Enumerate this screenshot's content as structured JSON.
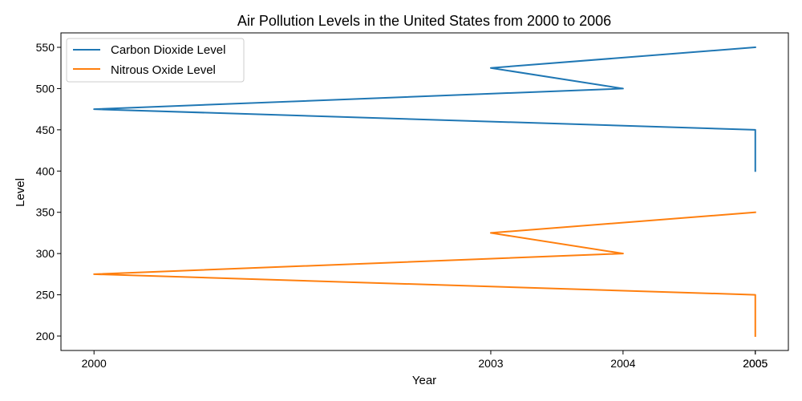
{
  "chart_data": {
    "type": "line",
    "title": "Air Pollution Levels in the United States from 2000 to 2006",
    "xlabel": "Year",
    "ylabel": "Level",
    "x_tick_labels": [
      "2000",
      "2003",
      "2004",
      "2005",
      "2005"
    ],
    "xlim": [
      1999.75,
      2005.25
    ],
    "ylim": [
      182.5,
      567.5
    ],
    "y_ticks": [
      200,
      250,
      300,
      350,
      400,
      450,
      500,
      550
    ],
    "legend_position": "upper-left",
    "series": [
      {
        "name": "Carbon Dioxide Level",
        "color": "#1f77b4",
        "x": [
          2005,
          2005,
          2000,
          2004,
          2003,
          2005
        ],
        "y": [
          400,
          450,
          475,
          500,
          525,
          550
        ]
      },
      {
        "name": "Nitrous Oxide Level",
        "color": "#ff7f0e",
        "x": [
          2005,
          2005,
          2000,
          2004,
          2003,
          2005
        ],
        "y": [
          200,
          250,
          275,
          300,
          325,
          350
        ]
      }
    ]
  }
}
